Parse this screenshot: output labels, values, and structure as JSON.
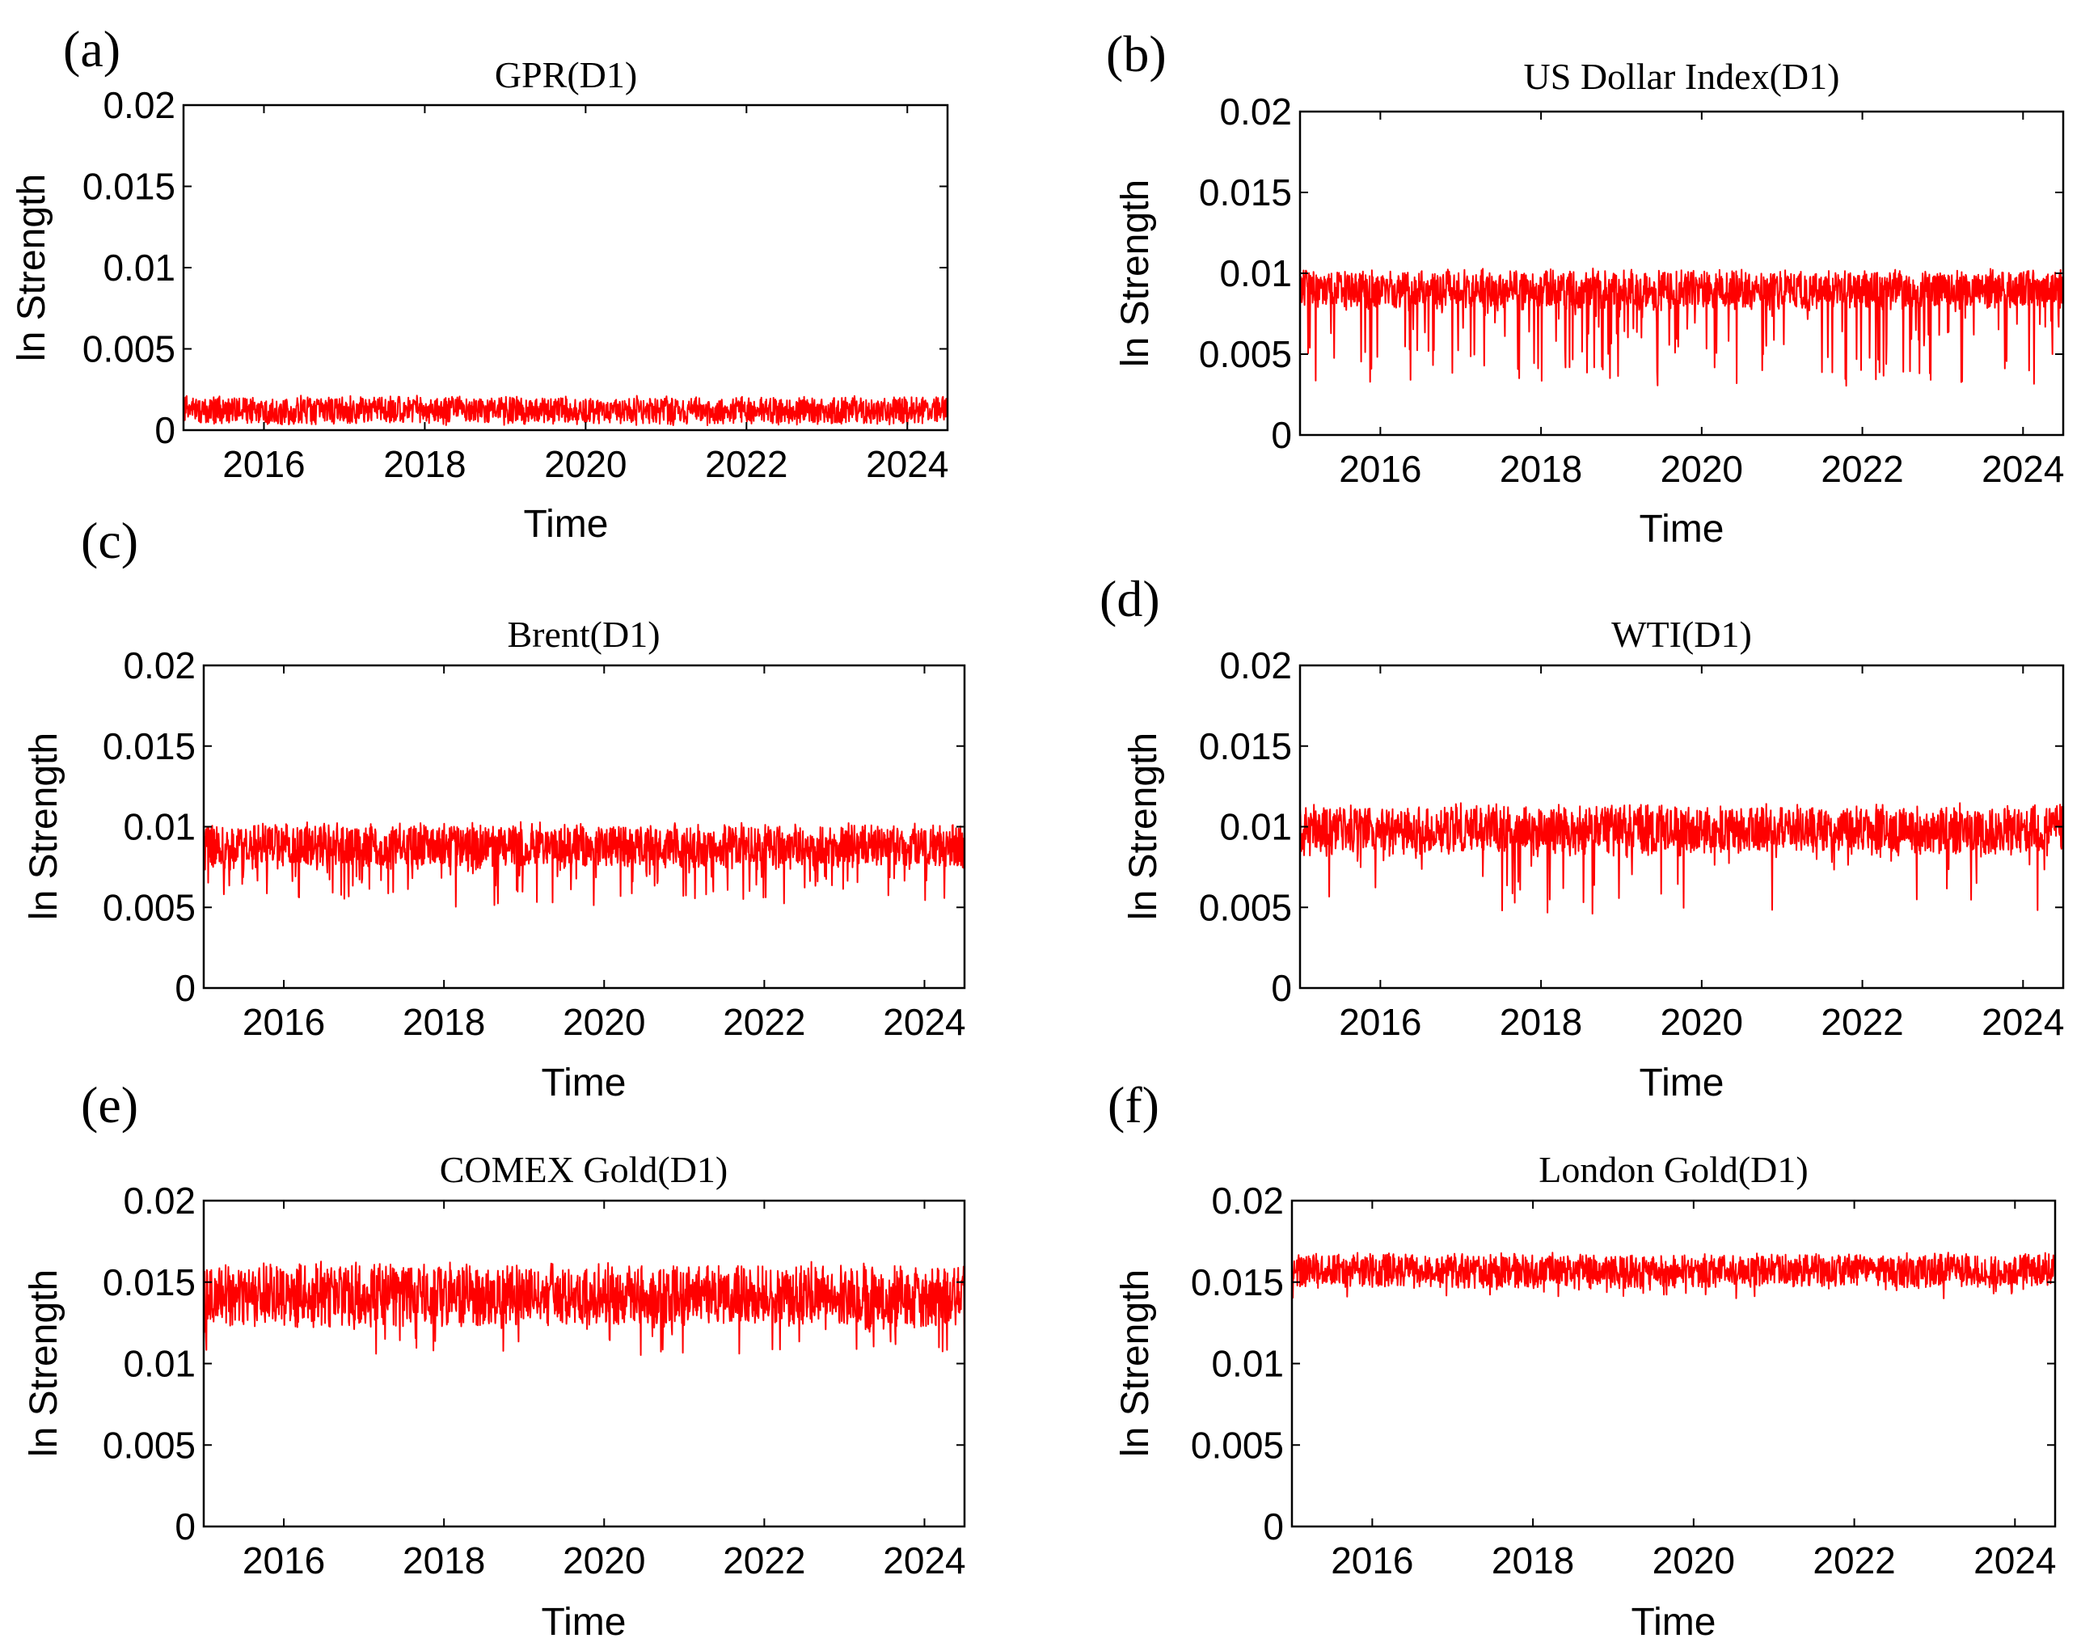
{
  "chart_data": [
    {
      "type": "line",
      "panel": "(a)",
      "title": "GPR(D1)",
      "xlabel": "Time",
      "ylabel": "ln Strength",
      "xlim": [
        2015.0,
        2024.5
      ],
      "ylim": [
        0,
        0.02
      ],
      "xticks": [
        2016,
        2018,
        2020,
        2022,
        2024
      ],
      "xtick_labels": [
        "2016",
        "2018",
        "2020",
        "2022",
        "2024"
      ],
      "yticks": [
        0,
        0.005,
        0.01,
        0.015,
        0.02
      ],
      "ytick_labels": [
        "0",
        "0.005",
        "0.01",
        "0.015",
        "0.02"
      ],
      "series": [
        {
          "name": "GPR(D1)",
          "color": "#ff0000",
          "mean": 0.0012,
          "spread": 0.0005,
          "drop_rate": 0.0,
          "min_value": 0.0003,
          "max_value": 0.0025
        }
      ]
    },
    {
      "type": "line",
      "panel": "(b)",
      "title": "US Dollar Index(D1)",
      "xlabel": "Time",
      "ylabel": "ln Strength",
      "xlim": [
        2015.0,
        2024.5
      ],
      "ylim": [
        0,
        0.02
      ],
      "xticks": [
        2016,
        2018,
        2020,
        2022,
        2024
      ],
      "xtick_labels": [
        "2016",
        "2018",
        "2020",
        "2022",
        "2024"
      ],
      "yticks": [
        0,
        0.005,
        0.01,
        0.015,
        0.02
      ],
      "ytick_labels": [
        "0",
        "0.005",
        "0.01",
        "0.015",
        "0.02"
      ],
      "series": [
        {
          "name": "US Dollar Index(D1)",
          "color": "#ff0000",
          "mean": 0.009,
          "spread": 0.0007,
          "drop_rate": 0.1,
          "min_value": 0.003,
          "max_value": 0.0104
        }
      ]
    },
    {
      "type": "line",
      "panel": "(c)",
      "title": "Brent(D1)",
      "xlabel": "Time",
      "ylabel": "ln Strength",
      "xlim": [
        2015.0,
        2024.5
      ],
      "ylim": [
        0,
        0.02
      ],
      "xticks": [
        2016,
        2018,
        2020,
        2022,
        2024
      ],
      "xtick_labels": [
        "2016",
        "2018",
        "2020",
        "2022",
        "2024"
      ],
      "yticks": [
        0,
        0.005,
        0.01,
        0.015,
        0.02
      ],
      "ytick_labels": [
        "0",
        "0.005",
        "0.01",
        "0.015",
        "0.02"
      ],
      "series": [
        {
          "name": "Brent(D1)",
          "color": "#ff0000",
          "mean": 0.0088,
          "spread": 0.0008,
          "drop_rate": 0.1,
          "min_value": 0.005,
          "max_value": 0.0105
        }
      ]
    },
    {
      "type": "line",
      "panel": "(d)",
      "title": "WTI(D1)",
      "xlabel": "Time",
      "ylabel": "ln Strength",
      "xlim": [
        2015.0,
        2024.5
      ],
      "ylim": [
        0,
        0.02
      ],
      "xticks": [
        2016,
        2018,
        2020,
        2022,
        2024
      ],
      "xtick_labels": [
        "2016",
        "2018",
        "2020",
        "2022",
        "2024"
      ],
      "yticks": [
        0,
        0.005,
        0.01,
        0.015,
        0.02
      ],
      "ytick_labels": [
        "0",
        "0.005",
        "0.01",
        "0.015",
        "0.02"
      ],
      "series": [
        {
          "name": "WTI(D1)",
          "color": "#ff0000",
          "mean": 0.0098,
          "spread": 0.0009,
          "drop_rate": 0.05,
          "min_value": 0.0045,
          "max_value": 0.012
        }
      ]
    },
    {
      "type": "line",
      "panel": "(e)",
      "title": "COMEX Gold(D1)",
      "xlabel": "Time",
      "ylabel": "ln Strength",
      "xlim": [
        2015.0,
        2024.5
      ],
      "ylim": [
        0,
        0.02
      ],
      "xticks": [
        2016,
        2018,
        2020,
        2022,
        2024
      ],
      "xtick_labels": [
        "2016",
        "2018",
        "2020",
        "2022",
        "2024"
      ],
      "yticks": [
        0,
        0.005,
        0.01,
        0.015,
        0.02
      ],
      "ytick_labels": [
        "0",
        "0.005",
        "0.01",
        "0.015",
        "0.02"
      ],
      "series": [
        {
          "name": "COMEX Gold(D1)",
          "color": "#ff0000",
          "mean": 0.0142,
          "spread": 0.0011,
          "drop_rate": 0.06,
          "min_value": 0.0105,
          "max_value": 0.0168
        }
      ]
    },
    {
      "type": "line",
      "panel": "(f)",
      "title": "London Gold(D1)",
      "xlabel": "Time",
      "ylabel": "ln Strength",
      "xlim": [
        2015.0,
        2024.5
      ],
      "ylim": [
        0,
        0.02
      ],
      "xticks": [
        2016,
        2018,
        2020,
        2022,
        2024
      ],
      "xtick_labels": [
        "2016",
        "2018",
        "2020",
        "2022",
        "2024"
      ],
      "yticks": [
        0,
        0.005,
        0.01,
        0.015,
        0.02
      ],
      "ytick_labels": [
        "0",
        "0.005",
        "0.01",
        "0.015",
        "0.02"
      ],
      "series": [
        {
          "name": "London Gold(D1)",
          "color": "#ff0000",
          "mean": 0.0157,
          "spread": 0.0006,
          "drop_rate": 0.04,
          "min_value": 0.014,
          "max_value": 0.0176
        }
      ]
    }
  ]
}
